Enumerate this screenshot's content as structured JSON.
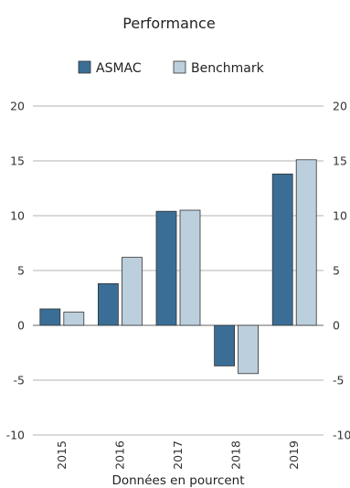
{
  "chart_data": {
    "type": "bar",
    "title": "Performance",
    "xlabel": "Données en pourcent",
    "ylabel": "",
    "categories": [
      "2015",
      "2016",
      "2017",
      "2018",
      "2019"
    ],
    "series": [
      {
        "name": "ASMAC",
        "values": [
          1.5,
          3.8,
          10.4,
          -3.7,
          13.8
        ],
        "color": "#3a6e96"
      },
      {
        "name": "Benchmark",
        "values": [
          1.2,
          6.2,
          10.5,
          -4.4,
          15.1
        ],
        "color": "#bccfdd"
      }
    ],
    "ylim": [
      -10,
      20
    ],
    "yticks": [
      -10,
      -5,
      0,
      5,
      10,
      15,
      20
    ],
    "grid": true,
    "legend_position": "top-center",
    "secondary_axis": true
  }
}
